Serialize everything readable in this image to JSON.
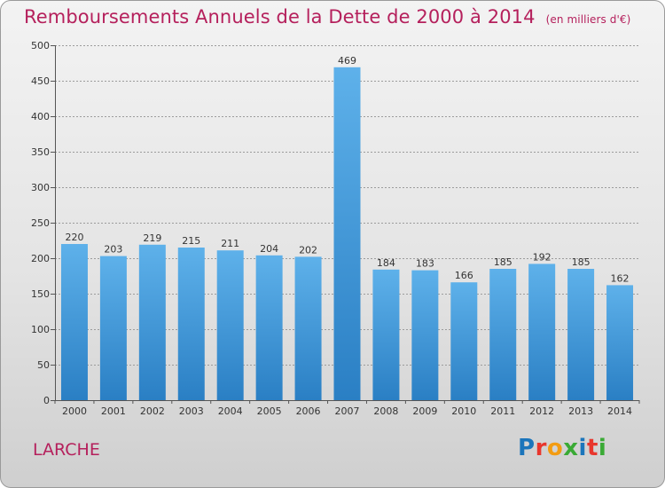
{
  "header": {
    "title": "Remboursements Annuels de la Dette de 2000 à 2014",
    "unit": "(en milliers d'€)"
  },
  "location": "LARCHE",
  "logo": {
    "text": "Proxiti",
    "letter_colors": [
      "#1b75bb",
      "#e8362d",
      "#f39c12",
      "#3aaa35",
      "#1b75bb",
      "#e8362d",
      "#3aaa35"
    ]
  },
  "colors": {
    "bar_top": "#5eb1ea",
    "bar_bottom": "#2a7fc4",
    "title": "#b5205c",
    "grid": "#9c9c9c"
  },
  "chart_data": {
    "type": "bar",
    "categories": [
      "2000",
      "2001",
      "2002",
      "2003",
      "2004",
      "2005",
      "2006",
      "2007",
      "2008",
      "2009",
      "2010",
      "2011",
      "2012",
      "2013",
      "2014"
    ],
    "values": [
      220,
      203,
      219,
      215,
      211,
      204,
      202,
      469,
      184,
      183,
      166,
      185,
      192,
      185,
      162
    ],
    "ylim": [
      0,
      500
    ],
    "yticks": [
      0,
      50,
      100,
      150,
      200,
      250,
      300,
      350,
      400,
      450,
      500
    ],
    "grid": true,
    "data_labels": true
  }
}
